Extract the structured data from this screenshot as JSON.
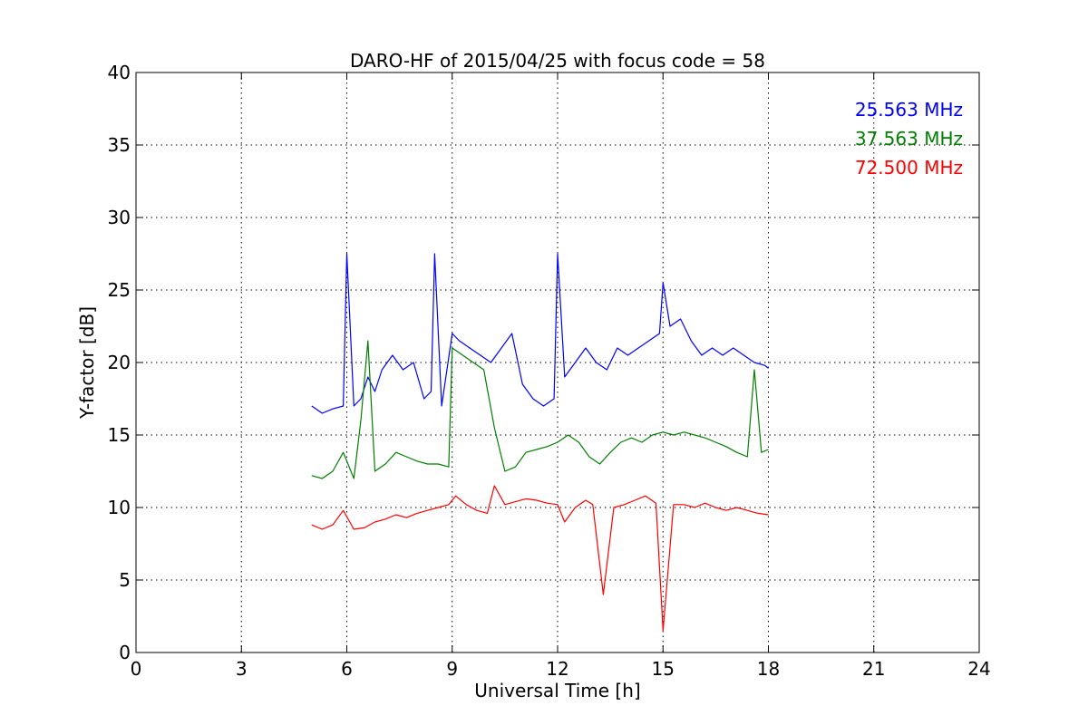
{
  "chart_data": {
    "type": "line",
    "title": "DARO-HF of 2015/04/25 with focus code = 58",
    "xlabel": "Universal Time [h]",
    "ylabel": "Y-factor [dB]",
    "xlim": [
      0,
      24
    ],
    "ylim": [
      0,
      40
    ],
    "xticks": [
      0,
      3,
      6,
      9,
      12,
      15,
      18,
      21,
      24
    ],
    "yticks": [
      0,
      5,
      10,
      15,
      20,
      25,
      30,
      35,
      40
    ],
    "grid": true,
    "legend_position": "top-right",
    "series": [
      {
        "name": "25.563 MHz",
        "color": "#0000ff",
        "x": [
          5.0,
          5.3,
          5.6,
          5.9,
          6.0,
          6.2,
          6.4,
          6.6,
          6.8,
          7.0,
          7.3,
          7.6,
          7.9,
          8.2,
          8.4,
          8.5,
          8.7,
          9.0,
          9.2,
          9.5,
          9.8,
          10.1,
          10.4,
          10.7,
          11.0,
          11.3,
          11.6,
          11.9,
          12.0,
          12.2,
          12.5,
          12.8,
          13.1,
          13.4,
          13.7,
          14.0,
          14.3,
          14.6,
          14.9,
          15.0,
          15.2,
          15.5,
          15.8,
          16.1,
          16.4,
          16.7,
          17.0,
          17.3,
          17.6,
          17.9,
          18.0
        ],
        "y": [
          17.0,
          16.5,
          16.8,
          17.0,
          27.5,
          17.0,
          17.5,
          19.0,
          18.0,
          19.5,
          20.5,
          19.5,
          20.0,
          17.5,
          18.0,
          27.5,
          17.0,
          22.0,
          21.5,
          21.0,
          20.5,
          20.0,
          21.0,
          22.0,
          18.5,
          17.5,
          17.0,
          17.5,
          27.5,
          19.0,
          20.0,
          21.0,
          20.0,
          19.5,
          21.0,
          20.5,
          21.0,
          21.5,
          22.0,
          25.5,
          22.5,
          23.0,
          21.5,
          20.5,
          21.0,
          20.5,
          21.0,
          20.5,
          20.0,
          19.8,
          19.6
        ]
      },
      {
        "name": "37.563 MHz",
        "color": "#007f00",
        "x": [
          5.0,
          5.3,
          5.6,
          5.9,
          6.2,
          6.4,
          6.6,
          6.8,
          7.1,
          7.4,
          7.7,
          8.0,
          8.3,
          8.6,
          8.9,
          9.0,
          9.3,
          9.6,
          9.9,
          10.2,
          10.5,
          10.8,
          11.1,
          11.4,
          11.7,
          12.0,
          12.3,
          12.6,
          12.9,
          13.2,
          13.5,
          13.8,
          14.1,
          14.4,
          14.7,
          15.0,
          15.3,
          15.6,
          15.9,
          16.2,
          16.5,
          16.8,
          17.1,
          17.4,
          17.6,
          17.8,
          18.0
        ],
        "y": [
          12.2,
          12.0,
          12.5,
          13.8,
          12.0,
          16.0,
          21.5,
          12.5,
          13.0,
          13.8,
          13.5,
          13.2,
          13.0,
          13.0,
          12.8,
          21.0,
          20.5,
          20.0,
          19.5,
          15.5,
          12.5,
          12.8,
          13.8,
          14.0,
          14.2,
          14.5,
          15.0,
          14.5,
          13.5,
          13.0,
          13.8,
          14.5,
          14.8,
          14.5,
          15.0,
          15.2,
          15.0,
          15.2,
          15.0,
          14.8,
          14.5,
          14.2,
          13.8,
          13.5,
          19.5,
          13.8,
          14.0
        ]
      },
      {
        "name": "72.500 MHz",
        "color": "#ff0000",
        "x": [
          5.0,
          5.3,
          5.6,
          5.9,
          6.2,
          6.5,
          6.8,
          7.1,
          7.4,
          7.7,
          8.0,
          8.3,
          8.6,
          8.9,
          9.1,
          9.4,
          9.7,
          10.0,
          10.2,
          10.5,
          10.8,
          11.1,
          11.4,
          11.7,
          12.0,
          12.2,
          12.5,
          12.8,
          13.0,
          13.3,
          13.6,
          13.9,
          14.2,
          14.5,
          14.8,
          15.0,
          15.3,
          15.6,
          15.9,
          16.2,
          16.5,
          16.8,
          17.1,
          17.4,
          17.7,
          18.0
        ],
        "y": [
          8.8,
          8.5,
          8.8,
          9.8,
          8.5,
          8.6,
          9.0,
          9.2,
          9.5,
          9.3,
          9.6,
          9.8,
          10.0,
          10.2,
          10.8,
          10.2,
          9.8,
          9.6,
          11.5,
          10.2,
          10.4,
          10.6,
          10.5,
          10.3,
          10.2,
          9.0,
          10.0,
          10.5,
          10.2,
          4.0,
          10.0,
          10.2,
          10.5,
          10.8,
          10.3,
          1.5,
          10.2,
          10.2,
          10.0,
          10.3,
          10.0,
          9.8,
          10.0,
          9.8,
          9.6,
          9.5
        ]
      }
    ]
  }
}
